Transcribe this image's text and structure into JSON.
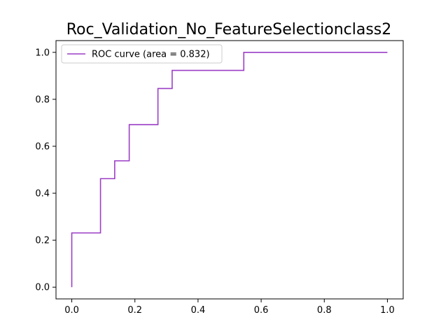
{
  "chart_data": {
    "type": "line",
    "title": "Roc_Validation_No_FeatureSelectionclass2",
    "xlabel": "",
    "ylabel": "",
    "xlim": [
      -0.05,
      1.05
    ],
    "ylim": [
      -0.05,
      1.05
    ],
    "xticks": [
      0.0,
      0.2,
      0.4,
      0.6,
      0.8,
      1.0
    ],
    "yticks": [
      0.0,
      0.2,
      0.4,
      0.6,
      0.8,
      1.0
    ],
    "xtick_labels": [
      "0.0",
      "0.2",
      "0.4",
      "0.6",
      "0.8",
      "1.0"
    ],
    "ytick_labels": [
      "0.0",
      "0.2",
      "0.4",
      "0.6",
      "0.8",
      "1.0"
    ],
    "grid": false,
    "legend_position": "upper-left",
    "series": [
      {
        "name": "ROC curve (area = 0.832)",
        "color": "#9b3fc6",
        "x": [
          0.0,
          0.0,
          0.091,
          0.091,
          0.136,
          0.136,
          0.182,
          0.182,
          0.273,
          0.273,
          0.318,
          0.318,
          0.545,
          0.545,
          1.0
        ],
        "y": [
          0.0,
          0.231,
          0.231,
          0.462,
          0.462,
          0.538,
          0.538,
          0.692,
          0.692,
          0.846,
          0.846,
          0.923,
          0.923,
          1.0,
          1.0
        ]
      }
    ]
  }
}
